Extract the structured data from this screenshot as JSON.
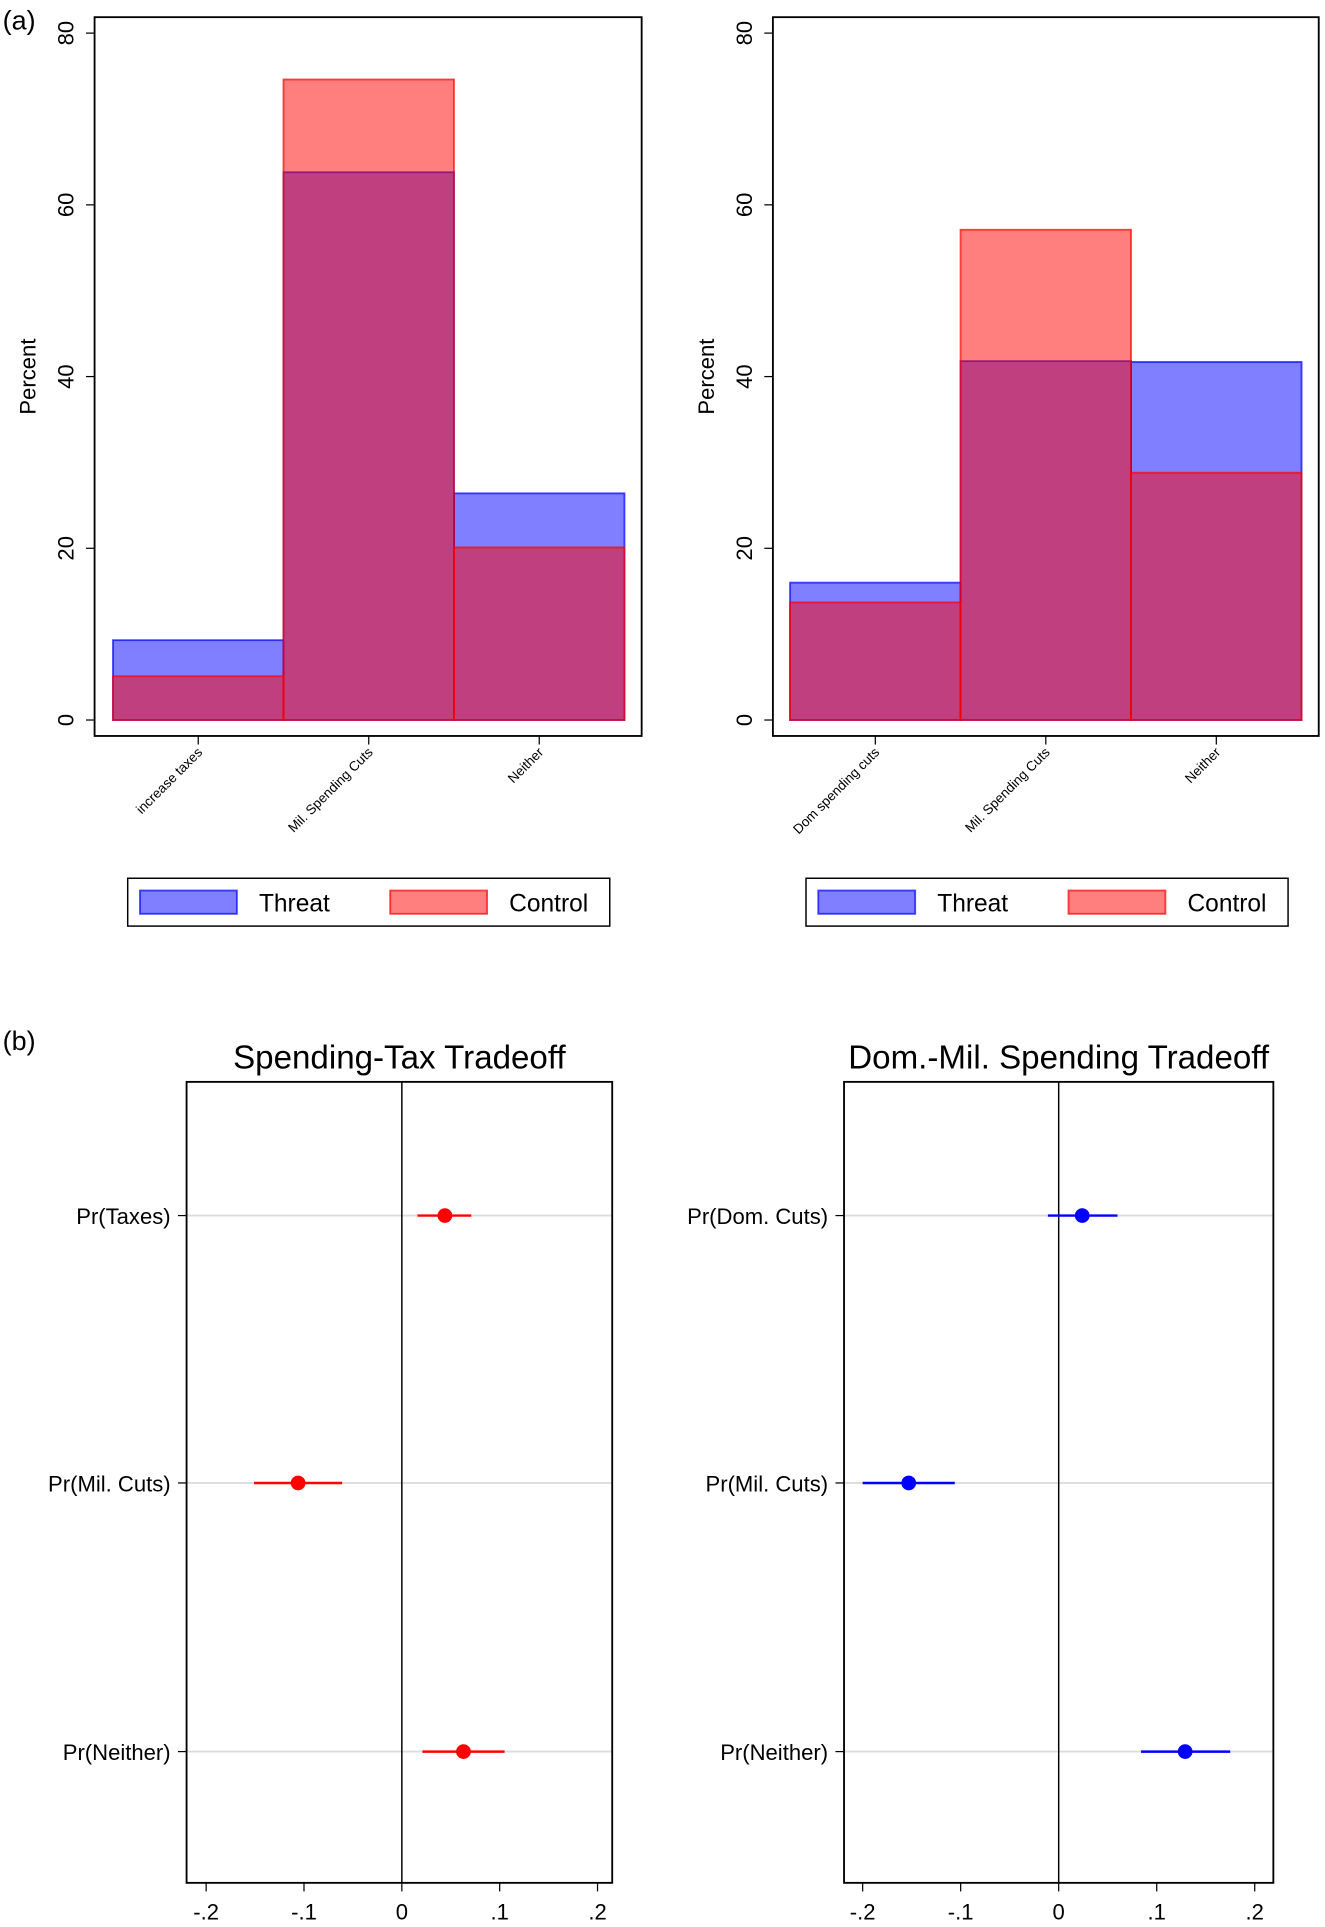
{
  "panel_labels": {
    "a": "(a)",
    "b": "(b)"
  },
  "colors": {
    "threat": "#0000ff",
    "control": "#ff0000",
    "overlap": "#bf3e7b"
  },
  "chart_data": [
    {
      "type": "bar",
      "panel": "a",
      "ylabel": "Percent",
      "ylim": [
        0,
        80
      ],
      "yticks": [
        0,
        20,
        40,
        60,
        80
      ],
      "categories": [
        "increase taxes",
        "Mil. Spending Cuts",
        "Neither"
      ],
      "series": [
        {
          "name": "Threat",
          "values": [
            9.3,
            63.8,
            26.4
          ]
        },
        {
          "name": "Control",
          "values": [
            5.1,
            74.6,
            20.1
          ]
        }
      ],
      "legend": "bottom"
    },
    {
      "type": "bar",
      "panel": "a",
      "ylabel": "Percent",
      "ylim": [
        0,
        80
      ],
      "yticks": [
        0,
        20,
        40,
        60,
        80
      ],
      "categories": [
        "Dom spending cuts",
        "Mil. Spending Cuts",
        "Neither"
      ],
      "series": [
        {
          "name": "Threat",
          "values": [
            16.0,
            41.8,
            41.7
          ]
        },
        {
          "name": "Control",
          "values": [
            13.7,
            57.1,
            28.8
          ]
        }
      ],
      "legend": "bottom"
    },
    {
      "type": "scatter",
      "panel": "b",
      "title": "Spending-Tax Tradeoff",
      "xlim": [
        -0.22,
        0.215
      ],
      "xticks": [
        -0.2,
        -0.1,
        0,
        0.1,
        0.2
      ],
      "xtick_labels": [
        "-.2",
        "-.1",
        "0",
        ".1",
        ".2"
      ],
      "color": "#ff0000",
      "points": [
        {
          "label": "Pr(Taxes)",
          "estimate": 0.044,
          "ci": [
            0.016,
            0.071
          ]
        },
        {
          "label": "Pr(Mil. Cuts)",
          "estimate": -0.106,
          "ci": [
            -0.151,
            -0.061
          ]
        },
        {
          "label": "Pr(Neither)",
          "estimate": 0.063,
          "ci": [
            0.021,
            0.105
          ]
        }
      ]
    },
    {
      "type": "scatter",
      "panel": "b",
      "title": "Dom.-Mil. Spending Tradeoff",
      "xlim": [
        -0.219,
        0.219
      ],
      "xticks": [
        -0.2,
        -0.1,
        0,
        0.1,
        0.2
      ],
      "xtick_labels": [
        "-.2",
        "-.1",
        "0",
        ".1",
        ".2"
      ],
      "color": "#0000ff",
      "points": [
        {
          "label": "Pr(Dom. Cuts)",
          "estimate": 0.024,
          "ci": [
            -0.011,
            0.06
          ]
        },
        {
          "label": "Pr(Mil. Cuts)",
          "estimate": -0.153,
          "ci": [
            -0.2,
            -0.106
          ]
        },
        {
          "label": "Pr(Neither)",
          "estimate": 0.129,
          "ci": [
            0.084,
            0.175
          ]
        }
      ]
    }
  ]
}
